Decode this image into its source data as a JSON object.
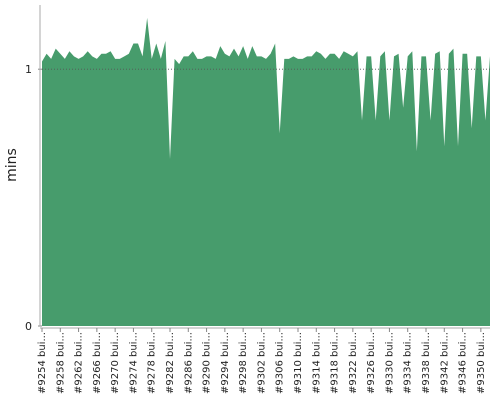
{
  "chart_data": {
    "type": "area",
    "y_label": "mins",
    "color": "#479c6c",
    "categories": [
      "#9254 bui...",
      null,
      null,
      null,
      "#9258 bui...",
      null,
      null,
      null,
      "#9262 bui...",
      null,
      null,
      null,
      "#9266 bui...",
      null,
      null,
      null,
      "#9270 bui...",
      null,
      null,
      null,
      "#9274 bui...",
      null,
      null,
      null,
      "#9278 bui...",
      null,
      null,
      null,
      "#9282 bui...",
      null,
      null,
      null,
      "#9286 bui...",
      null,
      null,
      null,
      "#9290 bui...",
      null,
      null,
      null,
      "#9294 bui...",
      null,
      null,
      null,
      "#9298 bui...",
      null,
      null,
      null,
      "#9302 bui...",
      null,
      null,
      null,
      "#9306 bui...",
      null,
      null,
      null,
      "#9310 bui...",
      null,
      null,
      null,
      "#9314 bui...",
      null,
      null,
      null,
      "#9318 bui...",
      null,
      null,
      null,
      "#9322 bui...",
      null,
      null,
      null,
      "#9326 bui...",
      null,
      null,
      null,
      "#9330 bui...",
      null,
      null,
      null,
      "#9334 bui...",
      null,
      null,
      null,
      "#9338 bui...",
      null,
      null,
      null,
      "#9342 bui...",
      null,
      null,
      null,
      "#9346 bui...",
      null,
      null,
      null,
      "#9350 bui...",
      null,
      null
    ],
    "values": [
      1.03,
      1.06,
      1.04,
      1.08,
      1.06,
      1.04,
      1.07,
      1.05,
      1.04,
      1.05,
      1.07,
      1.05,
      1.04,
      1.06,
      1.06,
      1.07,
      1.04,
      1.04,
      1.05,
      1.06,
      1.1,
      1.1,
      1.05,
      1.2,
      1.04,
      1.1,
      1.04,
      1.11,
      0.65,
      1.04,
      1.02,
      1.05,
      1.05,
      1.07,
      1.04,
      1.04,
      1.05,
      1.05,
      1.04,
      1.09,
      1.06,
      1.05,
      1.08,
      1.05,
      1.09,
      1.04,
      1.09,
      1.05,
      1.05,
      1.04,
      1.06,
      1.1,
      0.75,
      1.04,
      1.04,
      1.05,
      1.04,
      1.04,
      1.05,
      1.05,
      1.07,
      1.06,
      1.04,
      1.06,
      1.06,
      1.04,
      1.07,
      1.06,
      1.05,
      1.07,
      0.8,
      1.05,
      1.05,
      0.8,
      1.05,
      1.07,
      0.8,
      1.05,
      1.06,
      0.85,
      1.05,
      1.07,
      0.68,
      1.05,
      1.05,
      0.8,
      1.06,
      1.07,
      0.7,
      1.06,
      1.08,
      0.7,
      1.06,
      1.06,
      0.77,
      1.05,
      1.05,
      0.8,
      1.05
    ],
    "ylim": [
      0,
      1.25
    ],
    "yticks": [
      0,
      1
    ],
    "grid": true
  }
}
